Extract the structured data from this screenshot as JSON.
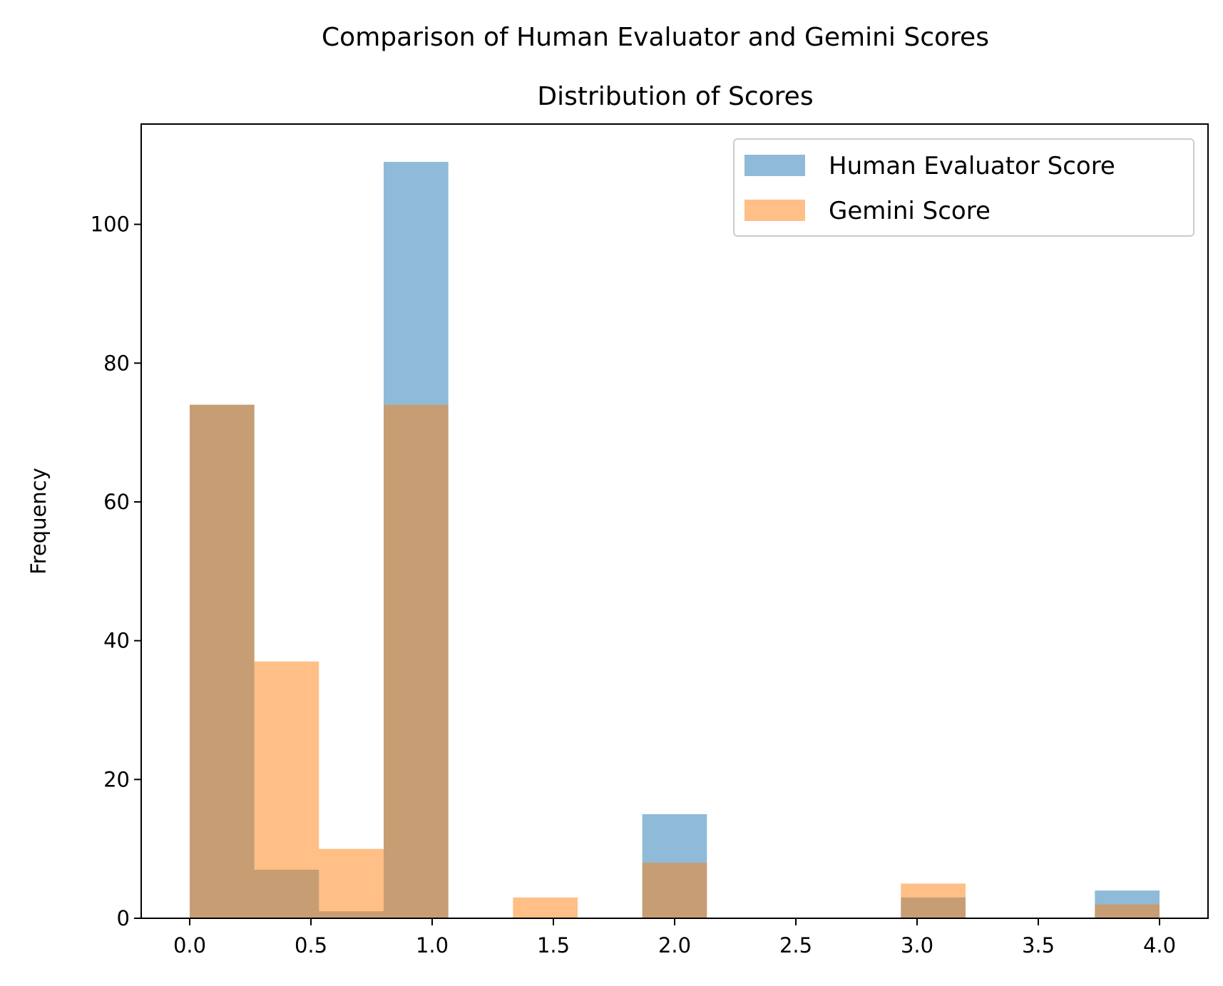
{
  "suptitle": "Comparison of Human Evaluator and Gemini Scores",
  "chart_data": {
    "type": "histogram",
    "title": "Distribution of Scores",
    "xlabel": "",
    "ylabel": "Frequency",
    "xlim": [
      -0.2,
      4.2
    ],
    "ylim": [
      0,
      114.45
    ],
    "xticks": [
      0.0,
      0.5,
      1.0,
      1.5,
      2.0,
      2.5,
      3.0,
      3.5,
      4.0
    ],
    "xtick_labels": [
      "0.0",
      "0.5",
      "1.0",
      "1.5",
      "2.0",
      "2.5",
      "3.0",
      "3.5",
      "4.0"
    ],
    "yticks": [
      0,
      20,
      40,
      60,
      80,
      100
    ],
    "ytick_labels": [
      "0",
      "20",
      "40",
      "60",
      "80",
      "100"
    ],
    "grid": false,
    "legend_position": "top-right",
    "bins": [
      0.0,
      0.2667,
      0.5333,
      0.8,
      1.0667,
      1.3333,
      1.6,
      1.8667,
      2.1333,
      2.4,
      2.6667,
      2.9333,
      3.2,
      3.4667,
      3.7333,
      4.0
    ],
    "series": [
      {
        "name": "Human Evaluator Score",
        "color": "#1f77b4",
        "alpha": 0.5,
        "counts": [
          74,
          7,
          1,
          109,
          0,
          0,
          0,
          15,
          0,
          0,
          0,
          3,
          0,
          0,
          4
        ]
      },
      {
        "name": "Gemini Score",
        "color": "#ff7f0e",
        "alpha": 0.5,
        "counts": [
          74,
          37,
          10,
          74,
          0,
          3,
          0,
          8,
          0,
          0,
          0,
          5,
          0,
          0,
          2
        ]
      }
    ]
  }
}
